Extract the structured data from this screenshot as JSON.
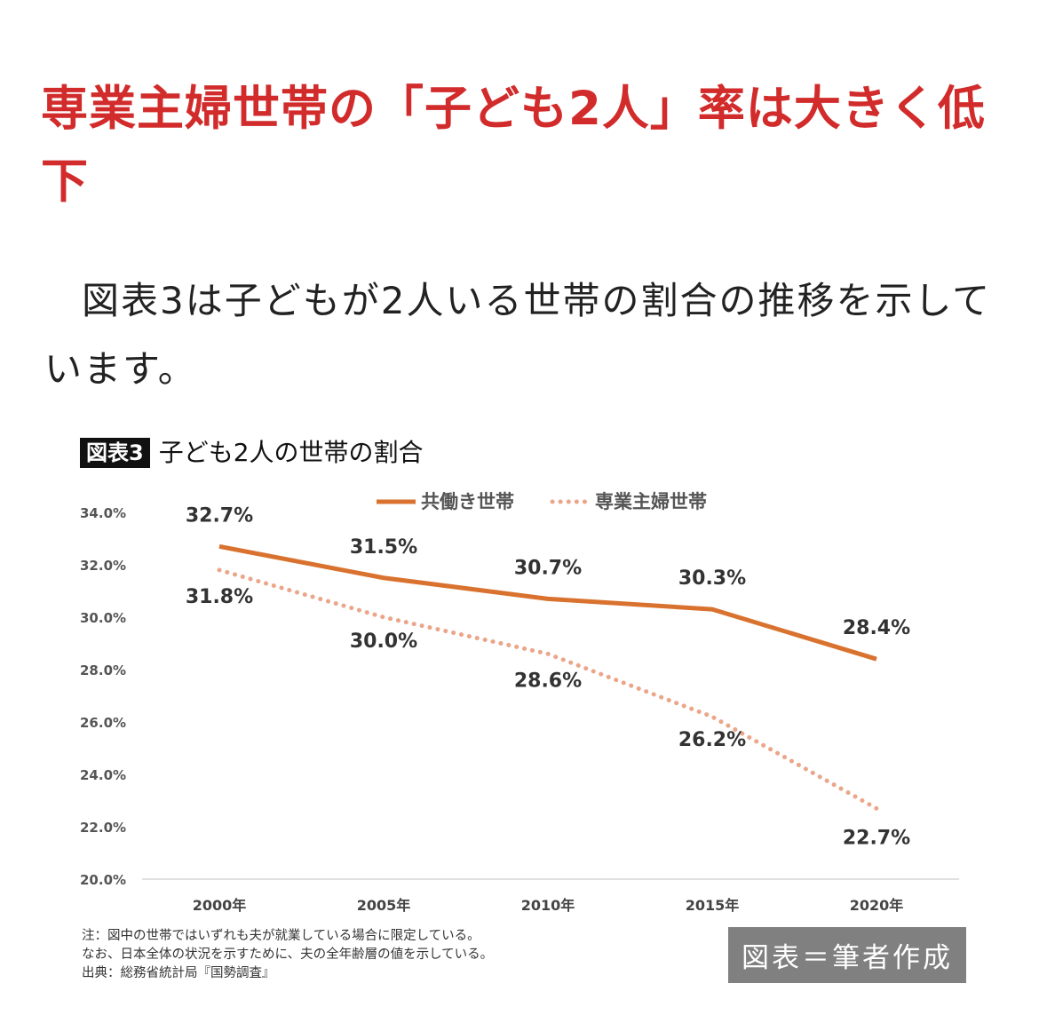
{
  "article": {
    "heading": "専業主婦世帯の「子ども2人」率は大きく低下",
    "body": "図表3は子どもが2人いる世帯の割合の推移を示しています。"
  },
  "figure": {
    "tag": "図表3",
    "title": "子ども2人の世帯の割合",
    "notes": [
      "注：図中の世帯ではいずれも夫が就業している場合に限定している。",
      "なお、日本全体の状況を示すために、夫の全年齢層の値を示している。",
      "出典：総務省統計局『国勢調査』"
    ],
    "credit": "図表＝筆者作成"
  },
  "chart_data": {
    "type": "line",
    "title": "子ども2人の世帯の割合",
    "categories": [
      "2000年",
      "2005年",
      "2010年",
      "2015年",
      "2020年"
    ],
    "series": [
      {
        "name": "共働き世帯",
        "values": [
          32.7,
          31.5,
          30.7,
          30.3,
          28.4
        ],
        "labels": [
          "32.7%",
          "31.5%",
          "30.7%",
          "30.3%",
          "28.4%"
        ],
        "color": "#d9722e",
        "style": "solid"
      },
      {
        "name": "専業主婦世帯",
        "values": [
          31.8,
          30.0,
          28.6,
          26.2,
          22.7
        ],
        "labels": [
          "31.8%",
          "30.0%",
          "28.6%",
          "26.2%",
          "22.7%"
        ],
        "color": "#eba68a",
        "style": "dotted"
      }
    ],
    "y_ticks": [
      "20.0%",
      "22.0%",
      "24.0%",
      "26.0%",
      "28.0%",
      "30.0%",
      "32.0%",
      "34.0%"
    ],
    "ylim": [
      20,
      34
    ],
    "legend_position": "top-center",
    "grid": false
  }
}
